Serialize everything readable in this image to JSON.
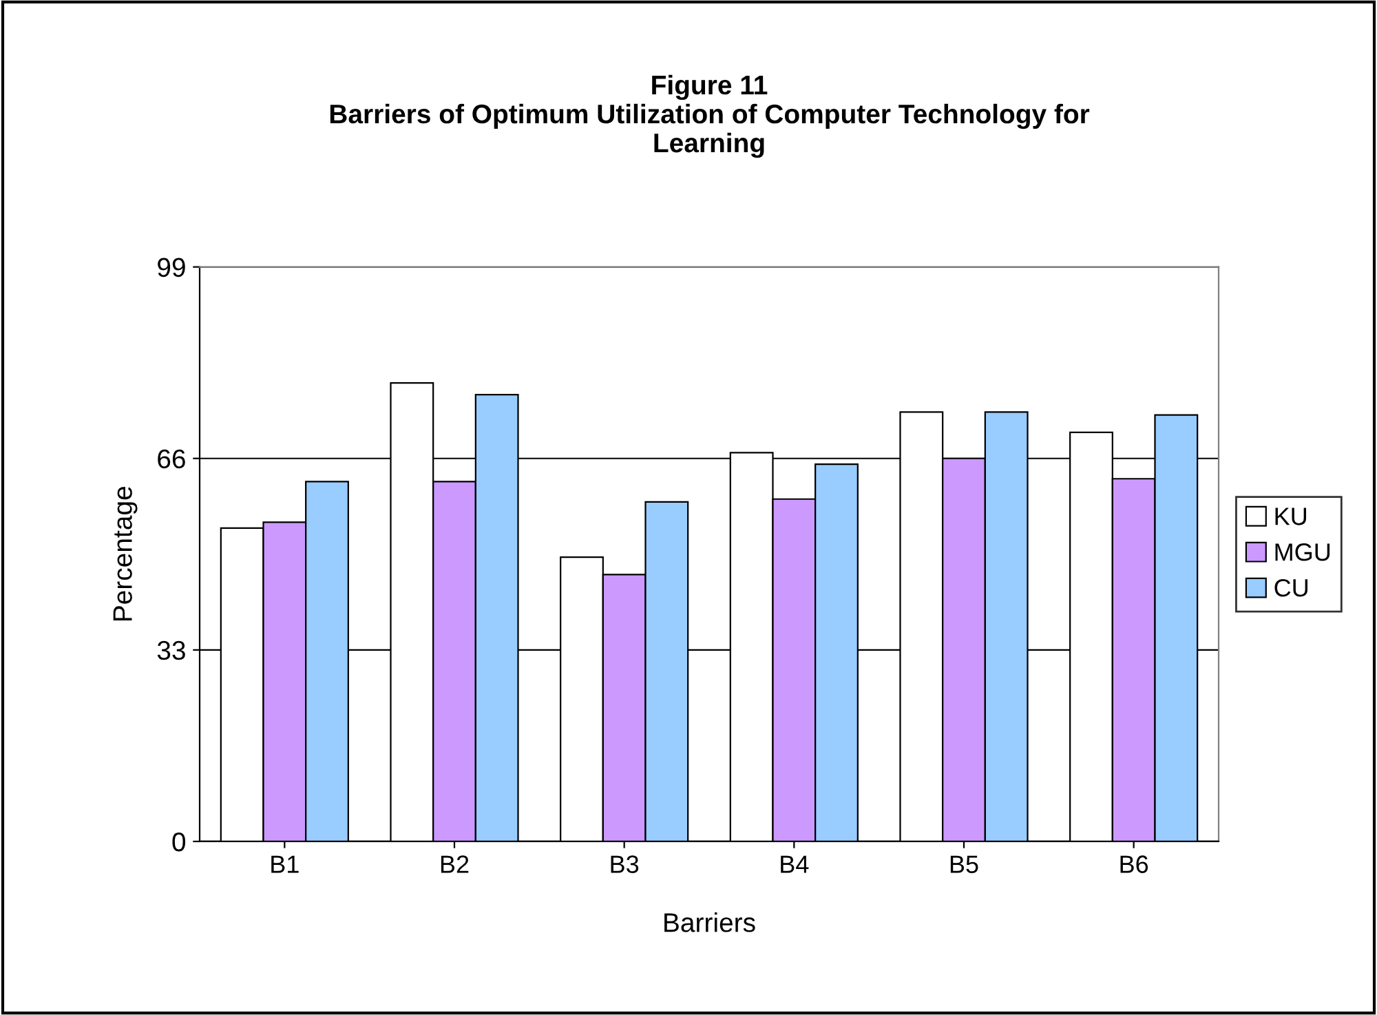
{
  "chart_data": {
    "type": "bar",
    "title": "Figure 11\nBarriers of Optimum Utilization of Computer Technology for\nLearning",
    "xlabel": "Barriers",
    "ylabel": "Percentage",
    "categories": [
      "B1",
      "B2",
      "B3",
      "B4",
      "B5",
      "B6"
    ],
    "series": [
      {
        "name": "KU",
        "color": "#ffffff",
        "values": [
          54,
          79,
          49,
          67,
          74,
          70.5
        ]
      },
      {
        "name": "MGU",
        "color": "#cc99ff",
        "values": [
          55,
          62,
          46,
          59,
          66,
          62.5
        ]
      },
      {
        "name": "CU",
        "color": "#99ccff",
        "values": [
          62,
          77,
          58.5,
          65,
          74,
          73.5
        ]
      }
    ],
    "ylim": [
      0,
      99
    ],
    "yticks": [
      0,
      33,
      66,
      99
    ],
    "grid": "y",
    "legend": "right"
  }
}
